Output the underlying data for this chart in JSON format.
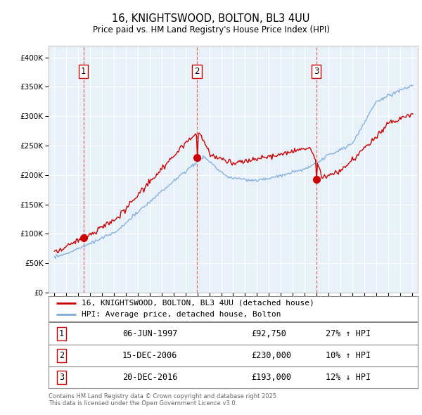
{
  "title": "16, KNIGHTSWOOD, BOLTON, BL3 4UU",
  "subtitle": "Price paid vs. HM Land Registry's House Price Index (HPI)",
  "hpi_label": "HPI: Average price, detached house, Bolton",
  "property_label": "16, KNIGHTSWOOD, BOLTON, BL3 4UU (detached house)",
  "sale_color": "#cc0000",
  "hpi_color": "#7aabda",
  "plot_bg": "#e8f0f8",
  "sales": [
    {
      "num": 1,
      "date": "06-JUN-1997",
      "price": 92750,
      "year": 1997.44,
      "hpi_pct": "27% ↑ HPI"
    },
    {
      "num": 2,
      "date": "15-DEC-2006",
      "price": 230000,
      "year": 2006.96,
      "hpi_pct": "10% ↑ HPI"
    },
    {
      "num": 3,
      "date": "20-DEC-2016",
      "price": 193000,
      "year": 2016.97,
      "hpi_pct": "12% ↓ HPI"
    }
  ],
  "ylim": [
    0,
    420000
  ],
  "yticks": [
    0,
    50000,
    100000,
    150000,
    200000,
    250000,
    300000,
    350000,
    400000
  ],
  "xlim": [
    1994.5,
    2025.5
  ],
  "footnote": "Contains HM Land Registry data © Crown copyright and database right 2025.\nThis data is licensed under the Open Government Licence v3.0."
}
